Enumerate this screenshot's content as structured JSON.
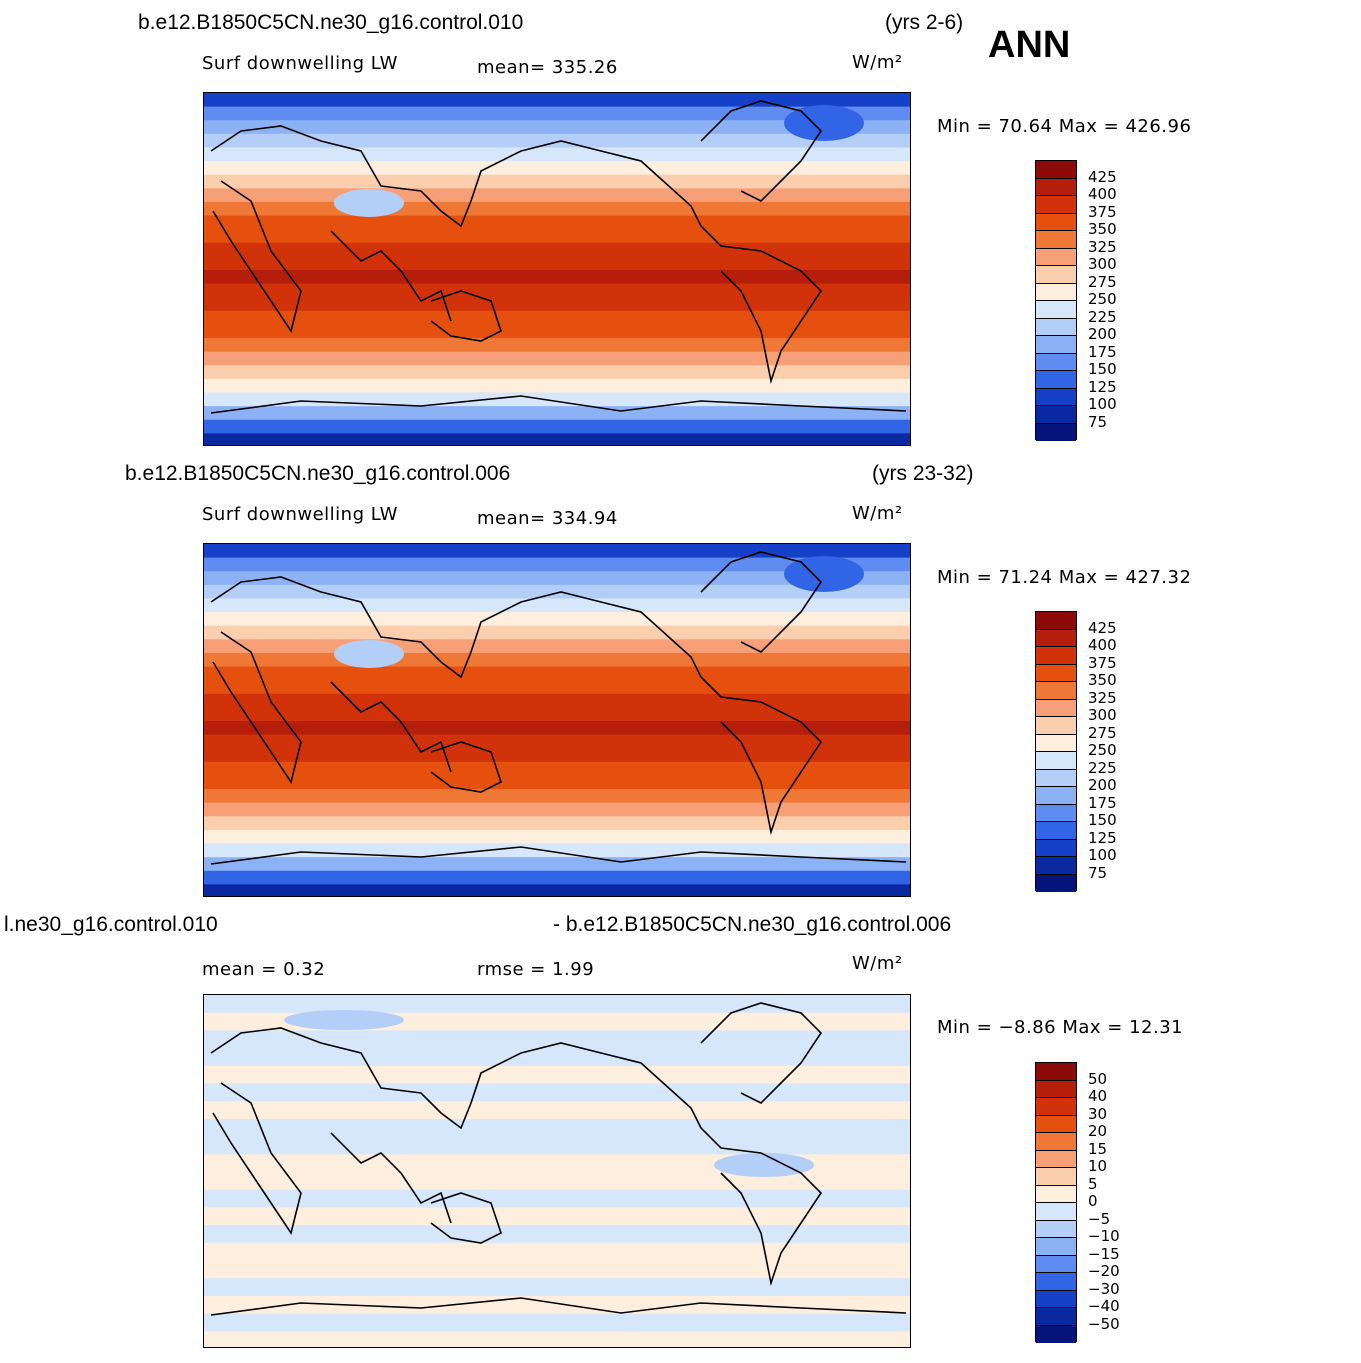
{
  "season": "ANN",
  "panels": [
    {
      "case": "b.e12.B1850C5CN.ne30_g16.control.010",
      "years": "(yrs 2-6)",
      "variable": "Surf downwelling LW",
      "stat1": "mean= 335.26",
      "stat2": "",
      "units": "W/m²",
      "minmax": "Min =  70.64 Max = 426.96",
      "palette": "abs",
      "levels": [
        "425",
        "400",
        "375",
        "350",
        "325",
        "300",
        "275",
        "250",
        "225",
        "200",
        "175",
        "150",
        "125",
        "100",
        "75"
      ]
    },
    {
      "case": "b.e12.B1850C5CN.ne30_g16.control.006",
      "years": "(yrs 23-32)",
      "variable": "Surf downwelling LW",
      "stat1": "mean= 334.94",
      "stat2": "",
      "units": "W/m²",
      "minmax": "Min =  71.24 Max = 427.32",
      "palette": "abs",
      "levels": [
        "425",
        "400",
        "375",
        "350",
        "325",
        "300",
        "275",
        "250",
        "225",
        "200",
        "175",
        "150",
        "125",
        "100",
        "75"
      ]
    },
    {
      "case": "l.ne30_g16.control.010",
      "years": "- b.e12.B1850C5CN.ne30_g16.control.006",
      "variable": "mean =    0.32",
      "stat1": "rmse =    1.99",
      "stat2": "",
      "units": "W/m²",
      "minmax": "Min =  −8.86 Max =  12.31",
      "palette": "diff",
      "levels": [
        "50",
        "40",
        "30",
        "20",
        "15",
        "10",
        "5",
        "0",
        "−5",
        "−10",
        "−15",
        "−20",
        "−30",
        "−40",
        "−50"
      ]
    }
  ],
  "colors": {
    "abs": [
      "#8c0a0a",
      "#b41e0a",
      "#d2320a",
      "#e6500f",
      "#f07837",
      "#f7a078",
      "#fbcfae",
      "#fdeedd",
      "#d6e6fb",
      "#b4cff7",
      "#8cb2f5",
      "#5f8cf0",
      "#3264e6",
      "#1441c8",
      "#0a28a0",
      "#05137a"
    ],
    "diff": [
      "#8c0a0a",
      "#b41e0a",
      "#d2320a",
      "#e6500f",
      "#f07837",
      "#f7a078",
      "#fbcfae",
      "#fdeedd",
      "#d6e6fb",
      "#b4cff7",
      "#8cb2f5",
      "#5f8cf0",
      "#3264e6",
      "#1441c8",
      "#0a28a0",
      "#05137a"
    ]
  }
}
